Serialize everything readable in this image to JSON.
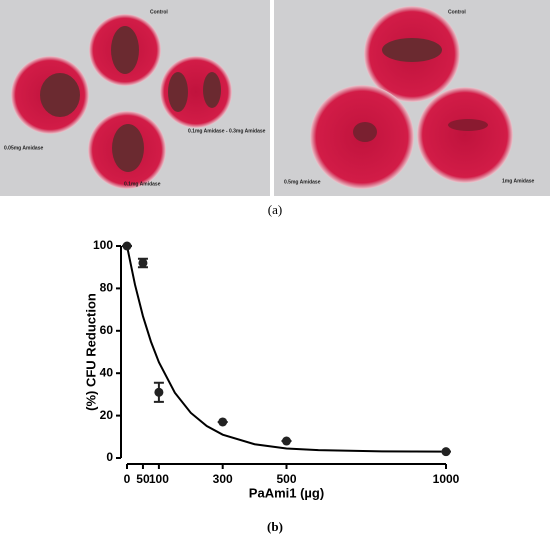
{
  "panel_a": {
    "caption": "(a)",
    "left_labels": [
      "Control",
      "0.05mg Amidase",
      "0.1mg Amidase - 0.3mg Amidase",
      "0.1mg Amidase"
    ],
    "right_labels": [
      "Control",
      "0.5mg Amidase",
      "1mg Amidase"
    ]
  },
  "panel_b": {
    "caption": "(b)"
  },
  "chart_data": {
    "type": "scatter",
    "x_label": "PaAmi1 (µg)",
    "y_label": "(%) CFU Reduction",
    "xlim": [
      0,
      1000
    ],
    "ylim": [
      0,
      100
    ],
    "xticks": [
      0,
      50,
      100,
      300,
      500,
      1000
    ],
    "yticks": [
      0,
      20,
      40,
      60,
      80,
      100
    ],
    "series": [
      {
        "color": "#222222",
        "x": [
          0,
          50,
          100,
          300,
          500,
          1000
        ],
        "values": [
          100,
          92,
          31,
          17,
          8,
          3
        ],
        "errors": [
          0,
          2,
          4.5,
          0,
          0,
          0
        ]
      }
    ],
    "fit": {
      "color": "#000000",
      "x": [
        0,
        25,
        50,
        75,
        100,
        150,
        200,
        250,
        300,
        400,
        500,
        600,
        800,
        1000
      ],
      "values": [
        100,
        81.8,
        66.9,
        54.9,
        45.2,
        30.8,
        21.3,
        15.1,
        11.0,
        6.5,
        4.5,
        3.7,
        3.1,
        3.0
      ]
    }
  }
}
